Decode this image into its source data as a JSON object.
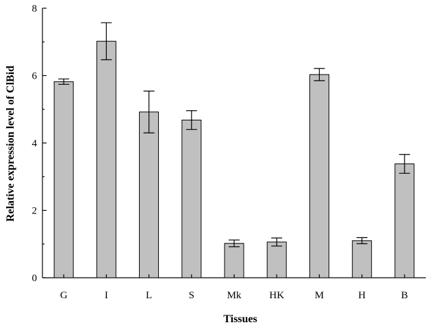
{
  "chart_data": {
    "type": "bar",
    "categories": [
      "G",
      "I",
      "L",
      "S",
      "Mk",
      "HK",
      "M",
      "H",
      "B"
    ],
    "values": [
      5.82,
      7.02,
      4.92,
      4.68,
      1.02,
      1.06,
      6.03,
      1.1,
      3.38
    ],
    "errors": [
      0.08,
      0.55,
      0.62,
      0.28,
      0.1,
      0.12,
      0.18,
      0.09,
      0.28
    ],
    "xlabel": "Tissues",
    "ylabel": "Relative expression level of ClBid",
    "ylim": [
      0,
      8
    ],
    "yticks": [
      0,
      2,
      4,
      6,
      8
    ],
    "grid": false,
    "bar_color": "#c0c0c0"
  }
}
